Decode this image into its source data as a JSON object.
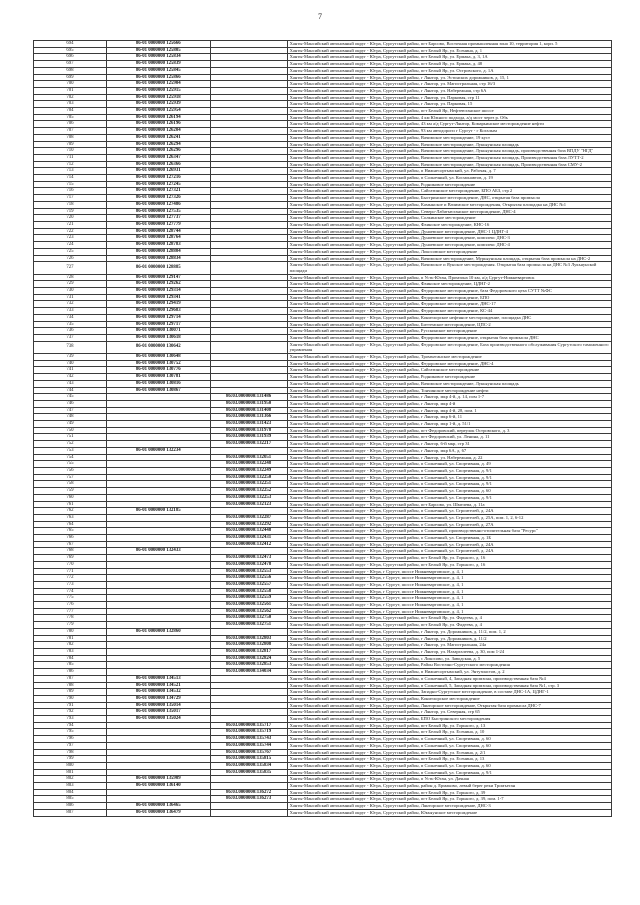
{
  "page": {
    "number": "7"
  },
  "table": {
    "prefixes": {
      "d": "Ханты-Мансийский автономный округ - Югра, Сургутский район, ",
      "s": "Ханты-Мансийский автономный округ - Югра, ",
      "": ""
    },
    "columns": [
      "row_number",
      "code_primary",
      "code_secondary",
      "address"
    ],
    "rows": [
      {
        "n": "694",
        "c1": "86-01 0000000 125666",
        "c2": "",
        "p": "d",
        "a": "пгт Барсово, Восточная промышленная зона 10, территория 1, корп. 5"
      },
      {
        "n": "695",
        "c1": "86-01 0000000 125805",
        "c2": "",
        "p": "d",
        "a": "пгт Белый Яр, ул. Есенина, д. 1"
      },
      {
        "n": "696",
        "c1": "86-01 0000000 125834",
        "c2": "",
        "p": "d",
        "a": "пгт Белый Яр, ул. Ермака, д. 3, 1А"
      },
      {
        "n": "697",
        "c1": "86-01 0000000 125839",
        "c2": "",
        "p": "d",
        "a": "пгт Белый Яр, ул. Ермака, д. 48"
      },
      {
        "n": "698",
        "c1": "86-01 0000000 125845",
        "c2": "",
        "p": "d",
        "a": "пгт Белый Яр, ул. Островского, д. 1А"
      },
      {
        "n": "699",
        "c1": "86-01 0000000 125866",
        "c2": "",
        "p": "d",
        "a": "г Лянтор, ул. Эстонских дорожников, д. 15, 1"
      },
      {
        "n": "700",
        "c1": "86-01 0000000 125904",
        "c2": "",
        "p": "d",
        "a": "г Лянтор, ул. Магистральная, стр 16/3"
      },
      {
        "n": "701",
        "c1": "86-01 0000000 125915",
        "c2": "",
        "p": "d",
        "a": "г Лянтор, ул. Набережная, стр 6А"
      },
      {
        "n": "702",
        "c1": "86-01 0000000 125918",
        "c2": "",
        "p": "d",
        "a": "г Лянтор, ул. Парковая, стр 11"
      },
      {
        "n": "703",
        "c1": "86-01 0000000 125939",
        "c2": "",
        "p": "d",
        "a": "г Лянтор, ул. Парковая, 15"
      },
      {
        "n": "704",
        "c1": "86-01 0000000 125954",
        "c2": "",
        "p": "d",
        "a": "пгт Белый Яр, Нефтеюганское шоссе"
      },
      {
        "n": "705",
        "c1": "86-01 0000000 126194",
        "c2": "",
        "p": "d",
        "a": "4 км Южного подхода, а/д мост через р. Обь"
      },
      {
        "n": "706",
        "c1": "86-01 0000000 126196",
        "c2": "",
        "p": "d",
        "a": "43 км а/д Сургут-Лянтор, Комарьинское месторождение нефти"
      },
      {
        "n": "707",
        "c1": "86-01 0000000 126204",
        "c2": "",
        "p": "d",
        "a": "93 км автодороги г Сургут - г Когалым"
      },
      {
        "n": "708",
        "c1": "86-01 0000000 126241",
        "c2": "",
        "p": "d",
        "a": "Вачимское месторождение, 19 куст"
      },
      {
        "n": "709",
        "c1": "86-01 0000000 126294",
        "c2": "",
        "p": "d",
        "a": "Вачимское месторождение, Лукьяунская площадь"
      },
      {
        "n": "710",
        "c1": "86-01 0000000 126296",
        "c2": "",
        "p": "d",
        "a": "Вачимское месторождение, Лукьяунская площадь, производственная база ВПДУ \"НГД\""
      },
      {
        "n": "711",
        "c1": "86-01 0000000 126347",
        "c2": "",
        "p": "d",
        "a": "Вачимское месторождение, Лукьяунская площадь, Производственная база ЛУТТ-2"
      },
      {
        "n": "712",
        "c1": "86-01 0000000 126366",
        "c2": "",
        "p": "d",
        "a": "Вачимское месторождение, Лукьяунская площадь, Производственная база СМУ-2"
      },
      {
        "n": "713",
        "c1": "86-01 0000000 126931",
        "c2": "",
        "p": "d",
        "a": "п Нижнесортымский, ул. Рабочая, д. 7"
      },
      {
        "n": "714",
        "c1": "86-01 0000000 127216",
        "c2": "",
        "p": "d",
        "a": "п Солнечный, ул. Космонавтов, д. 19"
      },
      {
        "n": "715",
        "c1": "86-01 0000000 127245",
        "c2": "",
        "p": "d",
        "a": "Родниковое месторождение"
      },
      {
        "n": "716",
        "c1": "86-01 0000000 127321",
        "c2": "",
        "p": "d",
        "a": "Сайгатинское месторождение, БПО АБЗ, стр 2"
      },
      {
        "n": "717",
        "c1": "86-01 0000000 127326",
        "c2": "",
        "p": "d",
        "a": "Быстринское месторождение, ДНС, открытая база промысла"
      },
      {
        "n": "718",
        "c1": "86-01 0000000 127486",
        "c2": "",
        "p": "d",
        "a": "Камынское и Вачимское месторождения, Открытая площадка на ДНС №1"
      },
      {
        "n": "719",
        "c1": "86-01 0000000 127535",
        "c2": "",
        "p": "d",
        "a": "Северо-Лабатъюганское месторождение, ДНС-4"
      },
      {
        "n": "720",
        "c1": "86-01 0000000 127737",
        "c2": "",
        "p": "d",
        "a": "Солкинское месторождение"
      },
      {
        "n": "721",
        "c1": "86-01 0000000 127779",
        "c2": "",
        "p": "d",
        "a": "Фаинское месторождение, КНС-16"
      },
      {
        "n": "722",
        "c1": "86-01 0000000 128744",
        "c2": "",
        "p": "d",
        "a": "Дунаевское месторождение, ДНС-1 ЦДНГ-4"
      },
      {
        "n": "723",
        "c1": "86-01 0000000 128764",
        "c2": "",
        "p": "d",
        "a": "Дунаевское месторождение, комплекс ДНС-3"
      },
      {
        "n": "724",
        "c1": "86-01 0000000 128783",
        "c2": "",
        "p": "d",
        "a": "Дунаевское месторождение, комплекс ДНС-4"
      },
      {
        "n": "725",
        "c1": "86-01 0000000 128804",
        "c2": "",
        "p": "d",
        "a": "Локосовское месторождение"
      },
      {
        "n": "726",
        "c1": "86-01 0000000 128834",
        "c2": "",
        "p": "d",
        "a": "Вачимское месторождение, Мурьяунская площадь, открытая база промысла на ДНС-2"
      },
      {
        "n": "727",
        "c1": "86-01 0000000 128885",
        "c2": "",
        "p": "d",
        "a": "Вачимское и Яунское месторождения. Открытая база промысла на ДНС №3 Лукьяунской площади"
      },
      {
        "n": "728",
        "c1": "86-01 0000000 129147",
        "c2": "",
        "p": "d",
        "a": "п Усть-Юган, Промзона 10 км, а/д Сургут-Нижневартовск"
      },
      {
        "n": "729",
        "c1": "86-01 0000000 129262",
        "c2": "",
        "p": "d",
        "a": "Фаинское месторождение, ЦДНГ-2"
      },
      {
        "n": "730",
        "c1": "86-01 0000000 129314",
        "c2": "",
        "p": "d",
        "a": "Федоровское месторождение, база Федоровского цеха СУТТ №ФС"
      },
      {
        "n": "731",
        "c1": "86-01 0000000 129341",
        "c2": "",
        "p": "d",
        "a": "Федоровское месторождение, БПО"
      },
      {
        "n": "732",
        "c1": "86-01 0000000 129419",
        "c2": "",
        "p": "d",
        "a": "Федоровское месторождение, ДНС-17"
      },
      {
        "n": "733",
        "c1": "86-01 0000000 129683",
        "c2": "",
        "p": "d",
        "a": "Федоровское месторождение, КС-44"
      },
      {
        "n": "734",
        "c1": "86-01 0000000 129714",
        "c2": "",
        "p": "d",
        "a": "Конитлорское нефтяное месторождение, площадка ДНС"
      },
      {
        "n": "735",
        "c1": "86-01 0000000 129717",
        "c2": "",
        "p": "d",
        "a": "Биттемское месторождение, ЦПС-2"
      },
      {
        "n": "736",
        "c1": "86-01 0000000 130071",
        "c2": "",
        "p": "d",
        "a": "Русскинское месторождение"
      },
      {
        "n": "737",
        "c1": "86-01 0000000 130618",
        "c2": "",
        "p": "d",
        "a": "Федоровское месторождение, открытая база промысла ДНС"
      },
      {
        "n": "738",
        "c1": "86-01 0000000 130642",
        "c2": "",
        "p": "d",
        "a": "Федоровское месторождение, База производственного обслуживания Сургутского таможенного управления"
      },
      {
        "n": "739",
        "c1": "86-01 0000000 130648",
        "c2": "",
        "p": "d",
        "a": "Тромъеганское месторождение"
      },
      {
        "n": "740",
        "c1": "86-01 0000000 130752",
        "c2": "",
        "p": "d",
        "a": "Федоровское месторождение, ДНС-4"
      },
      {
        "n": "741",
        "c1": "86-01 0000000 130776",
        "c2": "",
        "p": "d",
        "a": "Сайгатинское месторождение"
      },
      {
        "n": "742",
        "c1": "86-01 0000000 130781",
        "c2": "",
        "p": "d",
        "a": "Родниковое месторождение"
      },
      {
        "n": "743",
        "c1": "86-01 0000000 130816",
        "c2": "",
        "p": "d",
        "a": "Вачимское месторождение, Лукьяунская площадь"
      },
      {
        "n": "744",
        "c1": "86-01 0000000 130867",
        "c2": "",
        "p": "d",
        "a": "Тончинское месторождение нефти"
      },
      {
        "n": "745",
        "c1": "",
        "c2": "86:03.0000000:131486",
        "p": "d",
        "a": "г Лянтор, мкр 4-й, д. 14, пом 1-7"
      },
      {
        "n": "746",
        "c1": "",
        "c2": "86:03.0000000:131950",
        "p": "d",
        "a": "г Лянтор, мкр 4-й"
      },
      {
        "n": "747",
        "c1": "",
        "c2": "86:03.0000000:131408",
        "p": "d",
        "a": "г Лянтор, мкр 4-й, 28, пом. 1"
      },
      {
        "n": "748",
        "c1": "",
        "c2": "86:03.0000000:131366",
        "p": "d",
        "a": "г Лянтор, мкр 6-й, 11"
      },
      {
        "n": "749",
        "c1": "",
        "c2": "86:03.0000000:131423",
        "p": "d",
        "a": "г Лянтор, мкр 1-й, д. 51/1"
      },
      {
        "n": "750",
        "c1": "",
        "c2": "86:03.0000000:131978",
        "p": "d",
        "a": "пгт Федоровский, переулок Островского, д. 3"
      },
      {
        "n": "751",
        "c1": "",
        "c2": "86:03.0000000:131939",
        "p": "d",
        "a": "пгт Федоровский, ул. Ленина, д. 11"
      },
      {
        "n": "752",
        "c1": "",
        "c2": "86:03.0000000:132217",
        "p": "d",
        "a": "г Лянтор, 6-й мкр, стр 31"
      },
      {
        "n": "753",
        "c1": "86-01 0000000 132234",
        "c2": "",
        "p": "d",
        "a": "г Лянтор, мкр 6А, д. 67"
      },
      {
        "n": "754",
        "c1": "",
        "c2": "86:03.0000000:132051",
        "p": "d",
        "a": "г Лянтор, ул. Набережная, д. 22"
      },
      {
        "n": "755",
        "c1": "",
        "c2": "86:03.0000000:132248",
        "p": "d",
        "a": "п Солнечный, ул. Спортивная, д. 49"
      },
      {
        "n": "756",
        "c1": "",
        "c2": "86:03.0000000:132249",
        "p": "d",
        "a": "п Солнечный, ул. Спортивная, д. 9/1"
      },
      {
        "n": "757",
        "c1": "",
        "c2": "86:03.0000000:132250",
        "p": "d",
        "a": "п Солнечный, ул. Спортивная, д. 9/1"
      },
      {
        "n": "758",
        "c1": "",
        "c2": "86:03.0000000:132251",
        "p": "d",
        "a": "п Солнечный, ул. Спортивная, д. 9/1"
      },
      {
        "n": "759",
        "c1": "",
        "c2": "86:03.0000000:132252",
        "p": "d",
        "a": "п Солнечный, ул. Спортивная, д. 60"
      },
      {
        "n": "760",
        "c1": "",
        "c2": "86:03.0000000:132253",
        "p": "d",
        "a": "п Солнечный, ул. Спортивная, д. 9/1"
      },
      {
        "n": "761",
        "c1": "",
        "c2": "86:03.0000000:132123",
        "p": "d",
        "a": "пгт Барсово, ул. Шмелева, д. 11а"
      },
      {
        "n": "762",
        "c1": "86-01 0000000 132185",
        "c2": "",
        "p": "d",
        "a": "п Солнечный, ул. Строителей, д. 24А"
      },
      {
        "n": "763",
        "c1": "",
        "c2": "86:03.0000000:132287",
        "p": "d",
        "a": "п Солнечный, ул. Строителей, д. 25А, пом. 1, 2, 6-12"
      },
      {
        "n": "764",
        "c1": "",
        "c2": "86:03.0000000:132292",
        "p": "d",
        "a": "п Солнечный, ул. Строителей, д. 27А"
      },
      {
        "n": "765",
        "c1": "",
        "c2": "86:03.0000000:132448",
        "p": "d",
        "a": "п Солнечный, производственно-отопительная база \"Ресурс\""
      },
      {
        "n": "766",
        "c1": "",
        "c2": "86:03.0000000:132431",
        "p": "d",
        "a": "п Солнечный, ул. Спортивная, д. 1Б"
      },
      {
        "n": "767",
        "c1": "",
        "c2": "86:03.0000000:132412",
        "p": "d",
        "a": "п Солнечный, ул. Строителей, д. 24А"
      },
      {
        "n": "768",
        "c1": "86-01 0000000 132433",
        "c2": "",
        "p": "d",
        "a": "п Солнечный, ул. Строителей, д. 24А"
      },
      {
        "n": "769",
        "c1": "",
        "c2": "86:03.0000000:132473",
        "p": "d",
        "a": "пгт Белый Яр, ул. Горького, д. 16"
      },
      {
        "n": "770",
        "c1": "",
        "c2": "86:03.0000000:132478",
        "p": "d",
        "a": "пгт Белый Яр, ул. Горького, д. 16"
      },
      {
        "n": "771",
        "c1": "",
        "c2": "86:03.0000000:132553",
        "p": "s",
        "a": "г Сургут, шоссе Нижневартовское, д. 4, 1"
      },
      {
        "n": "772",
        "c1": "",
        "c2": "86:03.0000000:132556",
        "p": "s",
        "a": "г Сургут, шоссе Нижневартовское, д. 4, 1"
      },
      {
        "n": "773",
        "c1": "",
        "c2": "86:03.0000000:132557",
        "p": "s",
        "a": "г Сургут, шоссе Нижневартовское, д. 4, 1"
      },
      {
        "n": "774",
        "c1": "",
        "c2": "86:03.0000000:132558",
        "p": "s",
        "a": "г Сургут, шоссе Нижневартовское, д. 4, 1"
      },
      {
        "n": "775",
        "c1": "",
        "c2": "86:03.0000000:132559",
        "p": "s",
        "a": "г Сургут, шоссе Нижневартовское, д. 4, 1"
      },
      {
        "n": "776",
        "c1": "",
        "c2": "86:03.0000000:132561",
        "p": "s",
        "a": "г Сургут, шоссе Нижневартовское, д. 4, 1"
      },
      {
        "n": "777",
        "c1": "",
        "c2": "86:03.0000000:132562",
        "p": "s",
        "a": "г Сургут, шоссе Нижневартовское, д. 4, 1"
      },
      {
        "n": "778",
        "c1": "",
        "c2": "86:03.0000000:132750",
        "p": "d",
        "a": "пгт Белый Яр, ул. Фадеева, д. 4"
      },
      {
        "n": "779",
        "c1": "",
        "c2": "86:03.0000000:132751",
        "p": "d",
        "a": "пгт Белый Яр, ул. Фадеева, д. 4"
      },
      {
        "n": "780",
        "c1": "86-01 0000000 132860",
        "c2": "",
        "p": "d",
        "a": "г Лянтор, ул. Дорожников, д. 11/2, пом. 1, 2"
      },
      {
        "n": "781",
        "c1": "",
        "c2": "86:03.0000000:132803",
        "p": "d",
        "a": "г Лянтор, ул. Дорожников, д. 11/2"
      },
      {
        "n": "782",
        "c1": "",
        "c2": "86:03.0000000:132808",
        "p": "d",
        "a": "г Лянтор, ул. Магистральная, 24а"
      },
      {
        "n": "783",
        "c1": "",
        "c2": "86:03.0000000:132817",
        "p": "d",
        "a": "г Лянтор, ул. Назаргалеева, д. 30, пом 1-24"
      },
      {
        "n": "784",
        "c1": "",
        "c2": "86:03.0000000:132824",
        "p": "d",
        "a": "с Локосово, ул. Заводская, д. 5"
      },
      {
        "n": "785",
        "c1": "",
        "c2": "86:03.0000000:132853",
        "p": "d",
        "a": "Район Восточно-Сургутского месторождения"
      },
      {
        "n": "786",
        "c1": "",
        "c2": "86:03.0000000:134034",
        "p": "d",
        "a": "п Нижнесортымский, ул. Энтузиастов, д. 2"
      },
      {
        "n": "787",
        "c1": "86-01 0000000 134513",
        "c2": "",
        "p": "d",
        "a": "п Солнечный, 4, Западная промзона, производственная база №4"
      },
      {
        "n": "788",
        "c1": "86-01 0000000 134521",
        "c2": "",
        "p": "d",
        "a": "п Солнечный, 5, Западная промзона, производственная база №1, стр. 3"
      },
      {
        "n": "789",
        "c1": "86-01 0000000 134532",
        "c2": "",
        "p": "d",
        "a": "Западно-Сургутское месторождение, в составе ДНС-1А, ЦДНГ-1"
      },
      {
        "n": "790",
        "c1": "86-01 0000000 134729",
        "c2": "",
        "p": "d",
        "a": "Конитлорское месторождение"
      },
      {
        "n": "791",
        "c1": "86-01 0000000 135014",
        "c2": "",
        "p": "d",
        "a": "Лянторское месторождение, Открытая база промысла ДНС-7"
      },
      {
        "n": "792",
        "c1": "86-01 0000000 135017",
        "c2": "",
        "p": "d",
        "a": "г Лянтор, ул. Северная, стр 65"
      },
      {
        "n": "793",
        "c1": "86-01 0000000 135024",
        "c2": "",
        "p": "d",
        "a": "БПО Быстринского месторождения"
      },
      {
        "n": "794",
        "c1": "",
        "c2": "86:03.0000000:135717",
        "p": "d",
        "a": "пгт Белый Яр, ул. Горького, д. 13"
      },
      {
        "n": "795",
        "c1": "",
        "c2": "86:03.0000000:135719",
        "p": "d",
        "a": "пгт Белый Яр, ул. Есенина, д. 10"
      },
      {
        "n": "796",
        "c1": "",
        "c2": "86:03.0000000:135743",
        "p": "d",
        "a": "п Солнечный, ул. Спортивная, д. 60"
      },
      {
        "n": "797",
        "c1": "",
        "c2": "86:03.0000000:135744",
        "p": "d",
        "a": "п Солнечный, ул. Спортивная, д. 60"
      },
      {
        "n": "798",
        "c1": "",
        "c2": "86:03.0000000:135767",
        "p": "d",
        "a": "пгт Белый Яр, ул. Есенина, д. 2/1"
      },
      {
        "n": "799",
        "c1": "",
        "c2": "86:03.0000000:135815",
        "p": "d",
        "a": "пгт Белый Яр, ул. Есенина, д. 13"
      },
      {
        "n": "800",
        "c1": "",
        "c2": "86:03.0000000:135834",
        "p": "d",
        "a": "п Солнечный, ул. Спортивная, д. 60"
      },
      {
        "n": "801",
        "c1": "",
        "c2": "86:03.0000000:135835",
        "p": "d",
        "a": "п Солнечный, ул. Спортивная, д. 9/1"
      },
      {
        "n": "802",
        "c1": "86-01 0000000 135909",
        "c2": "",
        "p": "d",
        "a": "п Усть-Юган, ул. Дачная"
      },
      {
        "n": "803",
        "c1": "86-01 0000000 136140",
        "c2": "",
        "p": "d",
        "a": "район д. Ермаково, левый берег реки Тромъеган"
      },
      {
        "n": "804",
        "c1": "",
        "c2": "86:03.0000000:136272",
        "p": "d",
        "a": "пгт Белый Яр, ул. Горького, д. 39"
      },
      {
        "n": "805",
        "c1": "",
        "c2": "86:03.0000000:136273",
        "p": "d",
        "a": "пгт Белый Яр, ул. Горького, д. 39, пом. 1-7"
      },
      {
        "n": "806",
        "c1": "86-01 0000000 136465",
        "c2": "",
        "p": "d",
        "a": "Лянторское месторождение, ДНС-3"
      },
      {
        "n": "807",
        "c1": "86-01 0000000 136479",
        "c2": "",
        "p": "d",
        "a": "Юкъяунское месторождение"
      }
    ]
  }
}
